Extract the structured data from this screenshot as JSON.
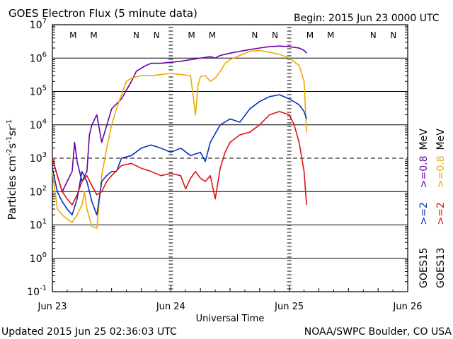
{
  "header": {
    "title": "GOES Electron Flux (5 minute data)",
    "begin": "Begin: 2015 Jun 23 0000 UTC"
  },
  "footer": {
    "updated": "Updated 2015 Jun 25 02:36:03 UTC",
    "credit": "NOAA/SWPC Boulder, CO USA"
  },
  "axes": {
    "y_label_main": "Particles cm",
    "y_label_sup1": "-2",
    "y_label_mid1": "s",
    "y_label_sup2": "-1",
    "y_label_mid2": "sr",
    "y_label_sup3": "-1",
    "x_label": "Universal Time",
    "y_ticks": [
      {
        "base": "10",
        "exp": "7"
      },
      {
        "base": "10",
        "exp": "6"
      },
      {
        "base": "10",
        "exp": "5"
      },
      {
        "base": "10",
        "exp": "4"
      },
      {
        "base": "10",
        "exp": "3"
      },
      {
        "base": "10",
        "exp": "2"
      },
      {
        "base": "10",
        "exp": "1"
      },
      {
        "base": "10",
        "exp": "0"
      },
      {
        "base": "10",
        "exp": "-1"
      }
    ],
    "x_ticks": [
      "Jun 23",
      "Jun 24",
      "Jun 25",
      "Jun 26"
    ]
  },
  "markers": [
    {
      "label": "M",
      "color": "#cc0000"
    },
    {
      "label": "M",
      "color": "#0033cc"
    },
    {
      "label": "N",
      "color": "#cc0000"
    },
    {
      "label": "N",
      "color": "#0033cc"
    },
    {
      "label": "M",
      "color": "#cc0000"
    },
    {
      "label": "M",
      "color": "#0033cc"
    },
    {
      "label": "N",
      "color": "#cc0000"
    },
    {
      "label": "N",
      "color": "#0033cc"
    },
    {
      "label": "M",
      "color": "#cc0000"
    },
    {
      "label": "M",
      "color": "#0033cc"
    },
    {
      "label": "N",
      "color": "#cc0000"
    },
    {
      "label": "N",
      "color": "#0033cc"
    }
  ],
  "legend": {
    "goes15": {
      "name": "GOES15",
      "e2": ">=2",
      "e08": ">=0.8",
      "unit": "MeV"
    },
    "goes13": {
      "name": "GOES13",
      "e2": ">=2",
      "e08": ">=0.8",
      "unit": "MeV"
    }
  },
  "colors": {
    "goes15_e2": "#0033bb",
    "goes15_e08": "#6600aa",
    "goes13_e2": "#dd1111",
    "goes13_e08": "#eeaa00",
    "grid": "#000000"
  },
  "chart_data": {
    "type": "line",
    "title": "GOES Electron Flux (5 minute data)",
    "xlabel": "Universal Time",
    "ylabel": "Particles cm-2 s-1 sr-1",
    "y_scale": "log",
    "ylim": [
      0.1,
      10000000
    ],
    "xlim": [
      0,
      72
    ],
    "x_unit": "hours since 2015 Jun 23 0000 UTC",
    "dashed_threshold": 1000,
    "series": [
      {
        "name": "GOES15 >=0.8 MeV",
        "color_key": "goes15_e08",
        "x": [
          0,
          1,
          2,
          3,
          4,
          4.5,
          5,
          6,
          7,
          7.5,
          8,
          9,
          10,
          12,
          14,
          16,
          17,
          18,
          19,
          20,
          22,
          24,
          26,
          28,
          30,
          32,
          33,
          34,
          36,
          38,
          40,
          42,
          44,
          46,
          48,
          50,
          51,
          51.5
        ],
        "y": [
          1000,
          300,
          100,
          200,
          400,
          3000,
          800,
          200,
          400,
          5000,
          10000,
          20000,
          3000,
          30000,
          60000,
          200000,
          400000,
          500000,
          600000,
          700000,
          700000,
          750000,
          800000,
          900000,
          1000000,
          1100000,
          1000000,
          1200000,
          1400000,
          1600000,
          1800000,
          2000000,
          2200000,
          2300000,
          2200000,
          2000000,
          1700000,
          1400000
        ]
      },
      {
        "name": "GOES13 >=0.8 MeV",
        "color_key": "goes13_e08",
        "x": [
          0,
          1,
          2,
          3,
          4,
          5,
          6,
          6.5,
          7,
          8,
          9,
          10,
          11,
          12,
          13,
          14,
          15,
          16,
          18,
          20,
          22,
          24,
          26,
          28,
          29,
          29.5,
          30,
          31,
          32,
          33,
          34,
          35,
          36,
          38,
          40,
          42,
          44,
          46,
          48,
          50,
          51,
          51.5
        ],
        "y": [
          400,
          30,
          20,
          15,
          12,
          20,
          40,
          100,
          30,
          9,
          8,
          300,
          2000,
          10000,
          30000,
          80000,
          200000,
          250000,
          300000,
          300000,
          320000,
          350000,
          320000,
          300000,
          20000,
          150000,
          280000,
          300000,
          200000,
          250000,
          400000,
          700000,
          900000,
          1200000,
          1600000,
          1700000,
          1500000,
          1300000,
          1000000,
          600000,
          200000,
          6000
        ]
      },
      {
        "name": "GOES15 >=2 MeV",
        "color_key": "goes15_e2",
        "x": [
          0,
          1,
          2,
          3,
          4,
          5,
          6,
          7,
          8,
          9,
          10,
          11,
          12,
          13,
          14,
          16,
          18,
          20,
          22,
          24,
          26,
          28,
          30,
          31,
          32,
          34,
          36,
          38,
          40,
          42,
          44,
          46,
          48,
          50,
          51,
          51.5
        ],
        "y": [
          500,
          100,
          50,
          30,
          20,
          60,
          400,
          200,
          50,
          20,
          200,
          300,
          400,
          400,
          1000,
          1200,
          2000,
          2500,
          2000,
          1500,
          2000,
          1200,
          1500,
          800,
          3000,
          10000,
          15000,
          12000,
          30000,
          50000,
          70000,
          80000,
          60000,
          40000,
          25000,
          15000
        ]
      },
      {
        "name": "GOES13 >=2 MeV",
        "color_key": "goes13_e2",
        "x": [
          0,
          1,
          2,
          3,
          4,
          5,
          6,
          7,
          8,
          9,
          10,
          11,
          12,
          14,
          16,
          18,
          20,
          22,
          24,
          26,
          27,
          28,
          29,
          30,
          31,
          32,
          33,
          34,
          35,
          36,
          38,
          40,
          42,
          44,
          46,
          48,
          49,
          50,
          51,
          51.5
        ],
        "y": [
          1000,
          300,
          100,
          60,
          40,
          80,
          200,
          300,
          150,
          80,
          100,
          200,
          300,
          600,
          700,
          500,
          400,
          300,
          350,
          300,
          120,
          250,
          400,
          250,
          200,
          300,
          60,
          500,
          1500,
          3000,
          5000,
          6000,
          10000,
          20000,
          25000,
          20000,
          10000,
          3000,
          400,
          40
        ]
      }
    ]
  }
}
